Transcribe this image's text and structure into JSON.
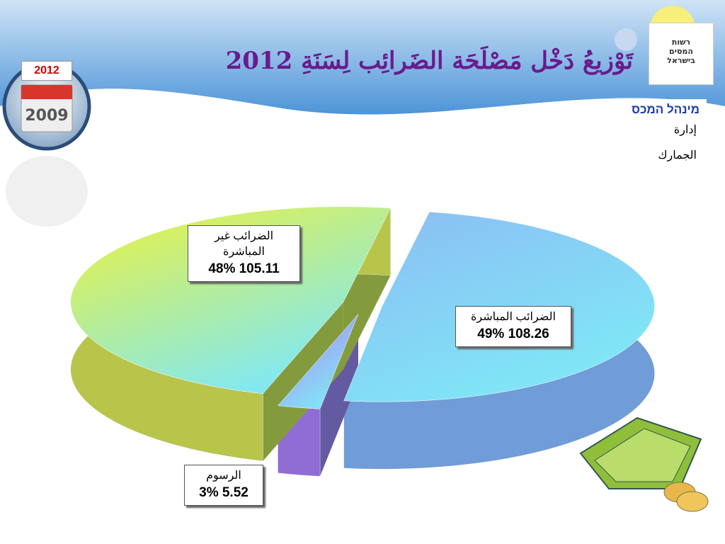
{
  "header": {
    "title": "تَوْزيعُ دَخْل مَصْلَحَة الضَرائِب لِسَنَةِ 2012",
    "badge": "2012",
    "calendar": "2009"
  },
  "logo": {
    "text": "רשות המסים בישראל"
  },
  "sidebar": {
    "line1": "מינהל המכס",
    "line2": "إدارة",
    "line3": "الجمارك"
  },
  "chart_data": {
    "type": "pie",
    "categories": [
      "الضرائب المباشرة",
      "الرسوم",
      "الضرائب غير المباشرة"
    ],
    "values": [
      108.26,
      5.52,
      105.11
    ],
    "value_labels": [
      "49% 108.26",
      "3% 5.52",
      "48%  105.11"
    ],
    "colors": [
      "#8cbcf4",
      "#b77cf2",
      "#eef23a"
    ]
  }
}
